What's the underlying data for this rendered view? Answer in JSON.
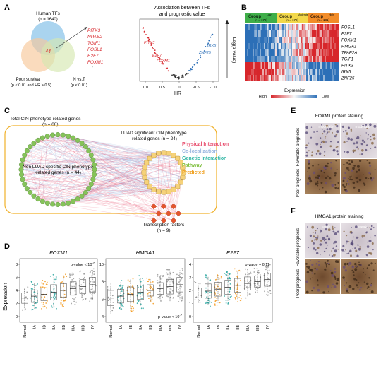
{
  "panels": {
    "A": {
      "label": "A",
      "venn": {
        "human_tfs": "Human TFs",
        "human_tfs_n": "(n = 1640)",
        "overlap_n": "44",
        "poor_survival": "Poor survival",
        "poor_survival_criteria": "(p < 0.01 and HR > 0.5)",
        "n_vs_t": "N vs.T",
        "n_vs_t_criteria": "(p < 0.01)",
        "tf_list": [
          "PITX3",
          "NPAS2",
          "TGIF1",
          "FOSL1",
          "E2F7",
          "FOXM1"
        ],
        "tf_more": ":"
      },
      "volcano": {
        "title_line1": "Association between TFs",
        "title_line2": "and prognostic value",
        "ylabel": "-Log(p-value)",
        "xlabel": "HR",
        "xticks": [
          "1.0",
          "0.5",
          "0",
          "-0.5",
          "-1.0"
        ],
        "labels_red": [
          "PITX3",
          "E2F7",
          "FOXM1"
        ],
        "labels_blue": [
          "IRX5",
          "ZNF25"
        ]
      }
    },
    "B": {
      "label": "B",
      "groups": [
        {
          "name": "Group",
          "sub": "Low",
          "n": "(n = 178)",
          "color": "#3fae49"
        },
        {
          "name": "Group",
          "sub": "Moderate",
          "n": "(n = 178)",
          "color": "#f2d84a"
        },
        {
          "name": "Group",
          "sub": "High",
          "n": "(n = 181)",
          "color": "#f28c28"
        }
      ],
      "genes": [
        "FOSL1",
        "E2F7",
        "FOXM1",
        "HMGA1",
        "TFAP2A",
        "TGIF1",
        "PITX3",
        "IRX5",
        "ZNF25"
      ],
      "legend_title": "Expression",
      "legend_high": "High",
      "legend_low": "Low",
      "high_color": "#d7262b",
      "low_color": "#2c6fb7"
    },
    "C": {
      "label": "C",
      "total_genes": "Total CIN phenotype-related genes",
      "total_n": "(n = 68)",
      "luad_sig_line1": "LUAD significant CIN phenotype",
      "luad_sig_line2": "-related genes (n = 24)",
      "non_luad_line1": "Non LUAD specific CIN phenotype",
      "non_luad_line2": "-related genes (n = 44)",
      "tf_label": "Transcription factors",
      "tf_n": "(n = 9)",
      "legend": [
        {
          "label": "Physical Interaction",
          "color": "#e8506f"
        },
        {
          "label": "Co-localization",
          "color": "#9bb7e0"
        },
        {
          "label": "Genetic Interaction",
          "color": "#2fb6a4"
        },
        {
          "label": "Pathway",
          "color": "#7fbf3f"
        },
        {
          "label": "Predicted",
          "color": "#f0a020"
        }
      ]
    },
    "D": {
      "label": "D",
      "ylabel": "Expression",
      "stages": [
        "Normal",
        "IA",
        "IB",
        "IIA",
        "IIB",
        "IIIA",
        "IIIB",
        "IV"
      ],
      "plots": [
        {
          "gene": "FOXM1",
          "pvalue": "p-value < 10",
          "exp": "-7",
          "yticks": [
            "0",
            "2",
            "4",
            "6",
            "8"
          ]
        },
        {
          "gene": "HMGA1",
          "pvalue": "p-value < 10",
          "exp": "-7",
          "yticks": [
            "4",
            "6",
            "8",
            "10"
          ]
        },
        {
          "gene": "E2F7",
          "pvalue": "p-value = 0.11",
          "exp": "",
          "yticks": [
            "0",
            "1",
            "2",
            "3",
            "4"
          ]
        }
      ]
    },
    "E": {
      "label": "E",
      "title": "FOXM1 protein staining",
      "row_top": "Favorable prognosis",
      "row_bottom": "Poor prognosis",
      "tag1": "moderate",
      "tag2": "moderate"
    },
    "F": {
      "label": "F",
      "title": "HMGA1 protein staining",
      "row_top": "Favorable prognosis",
      "row_bottom": "Poor prognosis",
      "tag1": "weak",
      "tag2": "weak"
    }
  }
}
